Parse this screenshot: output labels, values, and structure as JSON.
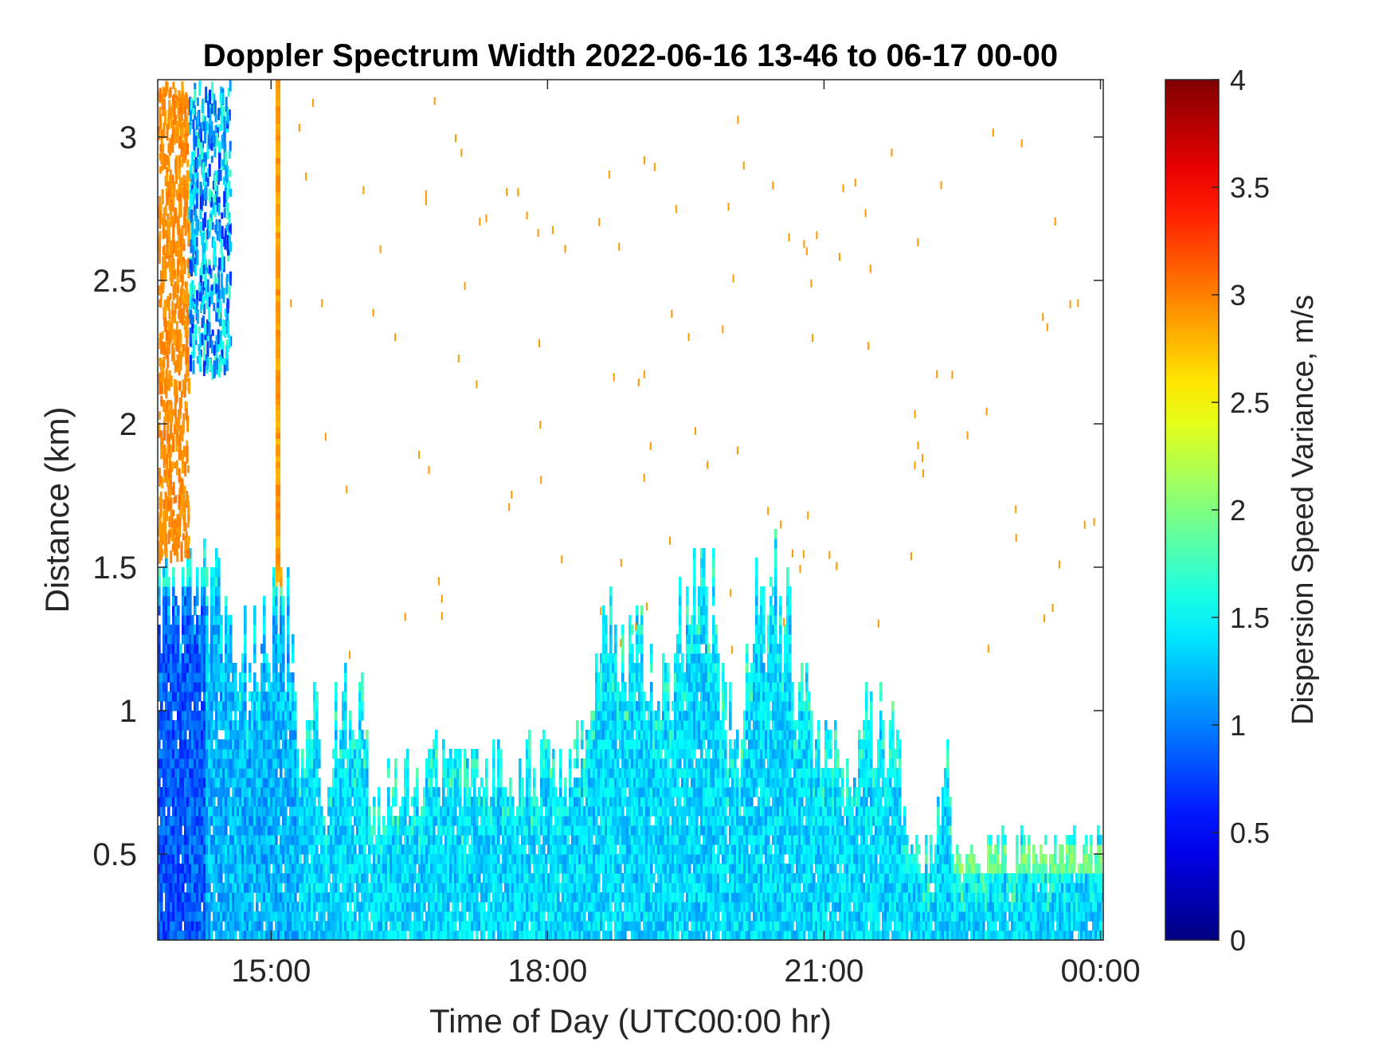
{
  "chart_data": {
    "type": "heatmap",
    "title": "Doppler Spectrum Width 2022-06-16 13-46 to 06-17 00-00",
    "xlabel": "Time of Day (UTC00:00 hr)",
    "ylabel": "Distance (km)",
    "x_unit": "hours since 2022-06-16 00:00 UTC",
    "xlim": [
      13.77,
      24.03
    ],
    "ylim": [
      0.2,
      3.2
    ],
    "x_ticks": [
      {
        "value": 15,
        "label": "15:00"
      },
      {
        "value": 18,
        "label": "18:00"
      },
      {
        "value": 21,
        "label": "21:00"
      },
      {
        "value": 24,
        "label": "00:00"
      }
    ],
    "y_ticks": [
      {
        "value": 0.5,
        "label": "0.5"
      },
      {
        "value": 1,
        "label": "1"
      },
      {
        "value": 1.5,
        "label": "1.5"
      },
      {
        "value": 2,
        "label": "2"
      },
      {
        "value": 2.5,
        "label": "2.5"
      },
      {
        "value": 3,
        "label": "3"
      }
    ],
    "grid": false,
    "colormap": "jet",
    "colorbar": {
      "label": "Dispersion Speed Variance, m/s",
      "range": [
        0,
        4
      ],
      "ticks": [
        {
          "value": 0,
          "label": "0"
        },
        {
          "value": 0.5,
          "label": "0.5"
        },
        {
          "value": 1,
          "label": "1"
        },
        {
          "value": 1.5,
          "label": "1.5"
        },
        {
          "value": 2,
          "label": "2"
        },
        {
          "value": 2.5,
          "label": "2.5"
        },
        {
          "value": 3,
          "label": "3"
        },
        {
          "value": 3.5,
          "label": "3.5"
        },
        {
          "value": 4,
          "label": "4"
        }
      ]
    },
    "data_top_km": [
      [
        13.8,
        1.44
      ],
      [
        14.2,
        1.44
      ],
      [
        14.55,
        1.42
      ],
      [
        14.7,
        1.25
      ],
      [
        14.95,
        1.38
      ],
      [
        15.2,
        1.38
      ],
      [
        15.3,
        0.75
      ],
      [
        15.45,
        1.12
      ],
      [
        15.6,
        0.65
      ],
      [
        15.7,
        1.05
      ],
      [
        16.0,
        1.1
      ],
      [
        16.1,
        0.72
      ],
      [
        16.5,
        0.78
      ],
      [
        17.0,
        0.85
      ],
      [
        17.5,
        0.82
      ],
      [
        17.9,
        0.85
      ],
      [
        18.3,
        0.9
      ],
      [
        18.5,
        1.0
      ],
      [
        18.55,
        1.35
      ],
      [
        18.8,
        1.28
      ],
      [
        19.1,
        1.22
      ],
      [
        19.3,
        1.05
      ],
      [
        19.5,
        1.45
      ],
      [
        19.8,
        1.45
      ],
      [
        19.9,
        1.05
      ],
      [
        20.1,
        0.95
      ],
      [
        20.25,
        1.48
      ],
      [
        20.55,
        1.48
      ],
      [
        20.7,
        1.12
      ],
      [
        20.9,
        1.05
      ],
      [
        21.0,
        0.92
      ],
      [
        21.2,
        0.85
      ],
      [
        21.5,
        1.02
      ],
      [
        21.8,
        0.98
      ],
      [
        21.85,
        0.6
      ],
      [
        22.2,
        0.55
      ],
      [
        22.35,
        0.98
      ],
      [
        22.4,
        0.5
      ],
      [
        23.0,
        0.53
      ],
      [
        23.5,
        0.52
      ],
      [
        24.0,
        0.55
      ]
    ],
    "data_regions": [
      {
        "x": [
          13.77,
          14.3
        ],
        "y": [
          0.2,
          1.44
        ],
        "width_ms": 0.85
      },
      {
        "x": [
          14.3,
          15.3
        ],
        "y": [
          0.2,
          1.4
        ],
        "width_ms": 1.2
      },
      {
        "x": [
          15.3,
          24.03
        ],
        "y": [
          0.2,
          0.55
        ],
        "width_ms": 1.35
      },
      {
        "x": [
          13.77,
          14.1
        ],
        "y": [
          1.55,
          3.2
        ],
        "width_ms": 2.9
      },
      {
        "x": [
          14.1,
          14.55
        ],
        "y": [
          2.2,
          3.2
        ],
        "width_ms": 1.0
      },
      {
        "x": [
          15.05,
          15.12
        ],
        "y": [
          1.45,
          3.2
        ],
        "width_ms": 2.9
      },
      {
        "x": [
          22.4,
          24.03
        ],
        "y": [
          0.45,
          0.55
        ],
        "width_ms": 1.9
      }
    ]
  }
}
